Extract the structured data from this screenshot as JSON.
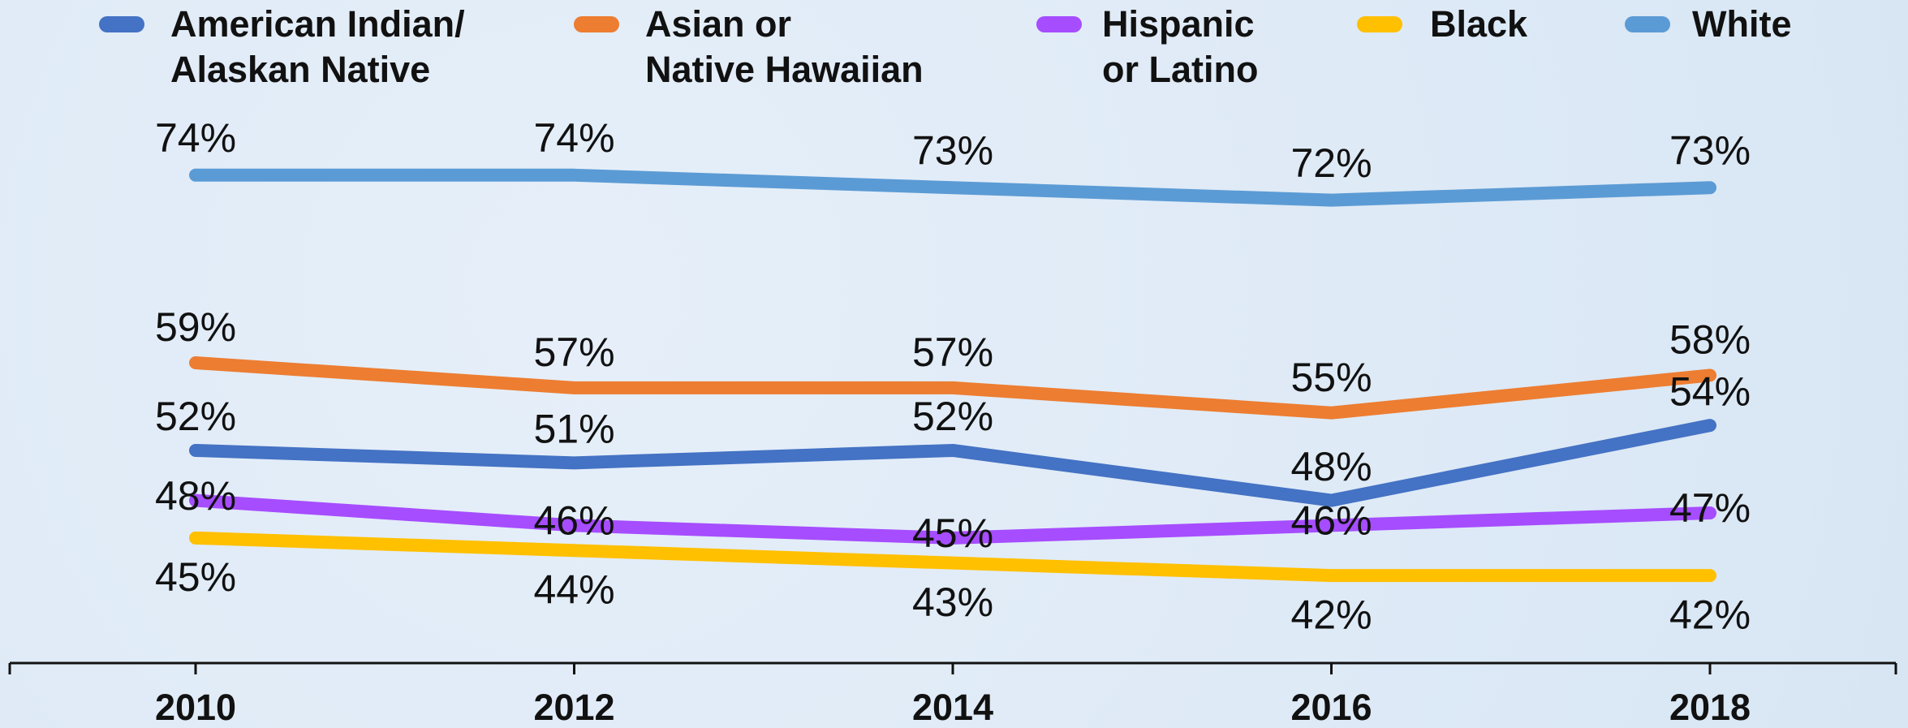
{
  "chart_data": {
    "type": "line",
    "categories": [
      "2010",
      "2012",
      "2014",
      "2016",
      "2018"
    ],
    "ylim": [
      35,
      88
    ],
    "series": [
      {
        "name": "American Indian/\nAlaskan Native",
        "color": "#4472c4",
        "values": [
          52,
          51,
          52,
          48,
          54
        ],
        "value_labels": [
          "52%",
          "51%",
          "52%",
          "48%",
          "54%"
        ]
      },
      {
        "name": "Asian or\nNative Hawaiian",
        "color": "#ed7d31",
        "values": [
          59,
          57,
          57,
          55,
          58
        ],
        "value_labels": [
          "59%",
          "57%",
          "57%",
          "55%",
          "58%"
        ]
      },
      {
        "name": "Hispanic\nor Latino",
        "color": "#a64dff",
        "values": [
          48,
          46,
          45,
          46,
          47
        ],
        "value_labels": [
          "48%",
          "46%",
          "45%",
          "46%",
          "47%"
        ]
      },
      {
        "name": "Black",
        "color": "#ffc000",
        "values": [
          45,
          44,
          43,
          42,
          42
        ],
        "value_labels": [
          "45%",
          "44%",
          "43%",
          "42%",
          "42%"
        ]
      },
      {
        "name": "White",
        "color": "#5b9bd5",
        "values": [
          74,
          74,
          73,
          72,
          73
        ],
        "value_labels": [
          "74%",
          "74%",
          "73%",
          "72%",
          "73%"
        ]
      }
    ]
  }
}
